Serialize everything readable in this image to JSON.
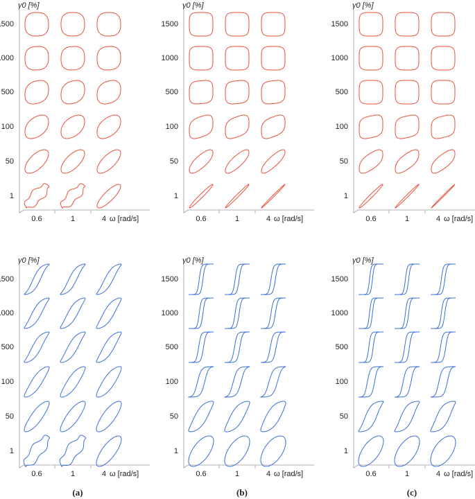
{
  "axes": {
    "y_label": "γ0 [%]",
    "y_ticks": [
      "1500",
      "1000",
      "500",
      "100",
      "50",
      "1"
    ],
    "x_ticks": [
      "0.6",
      "1",
      "4"
    ],
    "x_label": "ω [rad/s]"
  },
  "panels": [
    "(a)",
    "(b)",
    "(c)"
  ]
}
